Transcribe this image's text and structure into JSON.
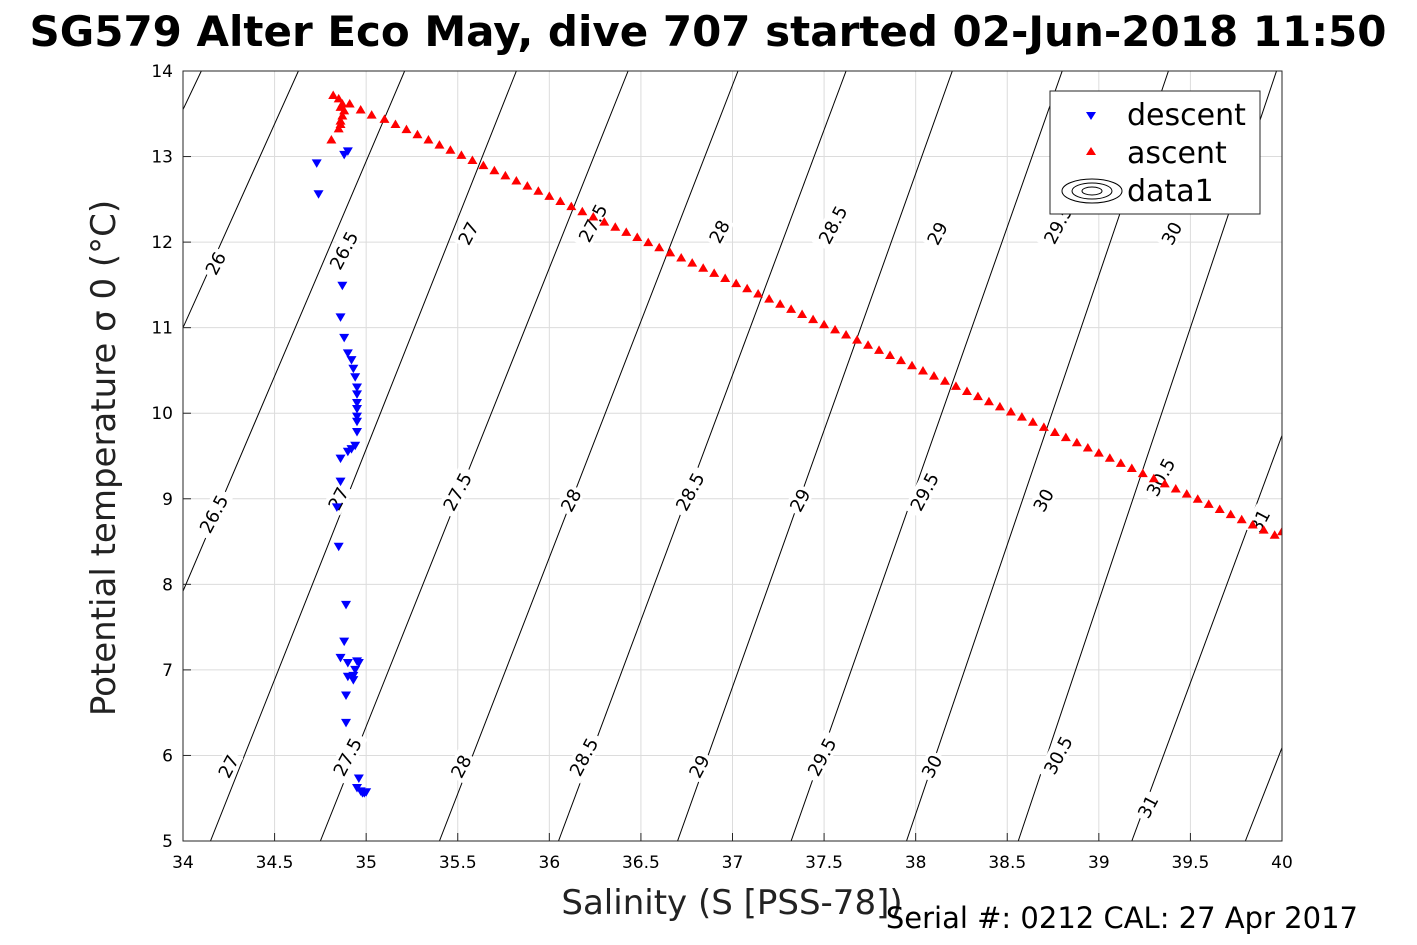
{
  "title": "SG579 Alter Eco May, dive 707 started 02-Jun-2018 11:50",
  "footer": "Serial #: 0212  CAL: 27 Apr 2017",
  "colors": {
    "descent": "#0000ff",
    "ascent": "#ff0000",
    "contour": "#000000",
    "grid": "#dcdcdc"
  },
  "chart_data": {
    "type": "scatter",
    "title": "SG579 Alter Eco May, dive 707 started 02-Jun-2018 11:50",
    "xlabel": "Salinity (S [PSS-78])",
    "ylabel": "Potential temperature σ 0 (°C)",
    "xlim": [
      34,
      40
    ],
    "ylim": [
      5,
      14
    ],
    "xticks": [
      "34",
      "34.5",
      "35",
      "35.5",
      "36",
      "36.5",
      "37",
      "37.5",
      "38",
      "38.5",
      "39",
      "39.5",
      "40"
    ],
    "yticks": [
      "5",
      "6",
      "7",
      "8",
      "9",
      "10",
      "11",
      "12",
      "13",
      "14"
    ],
    "grid": true,
    "legend_position": "top-right",
    "legend": [
      "descent",
      "ascent",
      "data1"
    ],
    "series": [
      {
        "name": "descent",
        "marker": "triangle-down",
        "color": "#0000ff",
        "points": [
          [
            34.73,
            12.92
          ],
          [
            34.74,
            12.56
          ],
          [
            34.88,
            13.02
          ],
          [
            34.9,
            13.06
          ],
          [
            34.87,
            11.49
          ],
          [
            34.86,
            11.12
          ],
          [
            34.88,
            10.88
          ],
          [
            34.9,
            10.7
          ],
          [
            34.92,
            10.62
          ],
          [
            34.93,
            10.52
          ],
          [
            34.94,
            10.42
          ],
          [
            34.95,
            10.3
          ],
          [
            34.95,
            10.22
          ],
          [
            34.95,
            10.12
          ],
          [
            34.95,
            10.05
          ],
          [
            34.95,
            9.96
          ],
          [
            34.95,
            9.9
          ],
          [
            34.95,
            9.78
          ],
          [
            34.94,
            9.62
          ],
          [
            34.92,
            9.58
          ],
          [
            34.9,
            9.55
          ],
          [
            34.86,
            9.47
          ],
          [
            34.86,
            9.2
          ],
          [
            34.84,
            8.9
          ],
          [
            34.85,
            8.44
          ],
          [
            34.89,
            7.76
          ],
          [
            34.88,
            7.33
          ],
          [
            34.86,
            7.14
          ],
          [
            34.9,
            7.08
          ],
          [
            34.95,
            7.1
          ],
          [
            34.96,
            7.08
          ],
          [
            34.94,
            7.0
          ],
          [
            34.93,
            6.93
          ],
          [
            34.9,
            6.92
          ],
          [
            34.93,
            6.88
          ],
          [
            34.89,
            6.7
          ],
          [
            34.89,
            6.38
          ],
          [
            34.96,
            5.73
          ],
          [
            34.95,
            5.62
          ],
          [
            34.97,
            5.58
          ],
          [
            34.98,
            5.56
          ],
          [
            34.99,
            5.56
          ],
          [
            35.0,
            5.57
          ]
        ]
      },
      {
        "name": "ascent",
        "marker": "triangle-up",
        "color": "#ff0000",
        "points": [
          [
            34.82,
            13.72
          ],
          [
            34.85,
            13.68
          ],
          [
            34.87,
            13.62
          ],
          [
            34.86,
            13.58
          ],
          [
            34.88,
            13.54
          ],
          [
            34.87,
            13.48
          ],
          [
            34.86,
            13.42
          ],
          [
            34.86,
            13.38
          ],
          [
            34.85,
            13.33
          ],
          [
            34.81,
            13.2
          ],
          [
            34.91,
            13.62
          ],
          [
            34.97,
            13.55
          ],
          [
            35.03,
            13.49
          ],
          [
            35.1,
            13.44
          ],
          [
            35.16,
            13.38
          ],
          [
            35.22,
            13.32
          ],
          [
            35.28,
            13.26
          ],
          [
            35.34,
            13.2
          ],
          [
            35.4,
            13.14
          ],
          [
            35.46,
            13.08
          ],
          [
            35.52,
            13.02
          ],
          [
            35.58,
            12.96
          ],
          [
            35.64,
            12.9
          ],
          [
            35.7,
            12.84
          ],
          [
            35.76,
            12.78
          ],
          [
            35.82,
            12.72
          ],
          [
            35.88,
            12.66
          ],
          [
            35.94,
            12.6
          ],
          [
            36.0,
            12.54
          ],
          [
            36.06,
            12.48
          ],
          [
            36.12,
            12.42
          ],
          [
            36.18,
            12.36
          ],
          [
            36.24,
            12.3
          ],
          [
            36.3,
            12.24
          ],
          [
            36.36,
            12.18
          ],
          [
            36.42,
            12.12
          ],
          [
            36.48,
            12.06
          ],
          [
            36.54,
            12.0
          ],
          [
            36.6,
            11.94
          ],
          [
            36.66,
            11.88
          ],
          [
            36.72,
            11.82
          ],
          [
            36.78,
            11.76
          ],
          [
            36.84,
            11.7
          ],
          [
            36.9,
            11.64
          ],
          [
            36.96,
            11.58
          ],
          [
            37.02,
            11.52
          ],
          [
            37.08,
            11.46
          ],
          [
            37.14,
            11.4
          ],
          [
            37.2,
            11.34
          ],
          [
            37.26,
            11.28
          ],
          [
            37.32,
            11.22
          ],
          [
            37.38,
            11.16
          ],
          [
            37.44,
            11.1
          ],
          [
            37.5,
            11.04
          ],
          [
            37.56,
            10.98
          ],
          [
            37.62,
            10.92
          ],
          [
            37.68,
            10.86
          ],
          [
            37.74,
            10.8
          ],
          [
            37.8,
            10.74
          ],
          [
            37.86,
            10.68
          ],
          [
            37.92,
            10.62
          ],
          [
            37.98,
            10.56
          ],
          [
            38.04,
            10.5
          ],
          [
            38.1,
            10.44
          ],
          [
            38.16,
            10.38
          ],
          [
            38.22,
            10.32
          ],
          [
            38.28,
            10.26
          ],
          [
            38.34,
            10.2
          ],
          [
            38.4,
            10.14
          ],
          [
            38.46,
            10.08
          ],
          [
            38.52,
            10.02
          ],
          [
            38.58,
            9.96
          ],
          [
            38.64,
            9.9
          ],
          [
            38.7,
            9.84
          ],
          [
            38.76,
            9.78
          ],
          [
            38.82,
            9.72
          ],
          [
            38.88,
            9.66
          ],
          [
            38.94,
            9.6
          ],
          [
            39.0,
            9.54
          ],
          [
            39.06,
            9.48
          ],
          [
            39.12,
            9.42
          ],
          [
            39.18,
            9.36
          ],
          [
            39.24,
            9.3
          ],
          [
            39.3,
            9.24
          ],
          [
            39.36,
            9.18
          ],
          [
            39.42,
            9.12
          ],
          [
            39.48,
            9.06
          ],
          [
            39.54,
            9.0
          ],
          [
            39.6,
            8.94
          ],
          [
            39.66,
            8.88
          ],
          [
            39.72,
            8.82
          ],
          [
            39.78,
            8.76
          ],
          [
            39.84,
            8.7
          ],
          [
            39.9,
            8.64
          ],
          [
            39.96,
            8.58
          ],
          [
            40.0,
            8.62
          ]
        ]
      }
    ],
    "contours": {
      "name": "data1",
      "levels": [
        "26",
        "26.5",
        "27",
        "27.5",
        "28",
        "28.5",
        "29",
        "29.5",
        "30",
        "30.5",
        "31"
      ],
      "lines": [
        {
          "level": 26,
          "from": [
            34.0,
            13.55
          ],
          "to": [
            34.1,
            14.0
          ]
        },
        {
          "level": 26.5,
          "from": [
            34.0,
            11.0
          ],
          "to": [
            34.63,
            14.0
          ]
        },
        {
          "level": 27,
          "from": [
            34.0,
            7.92
          ],
          "to": [
            35.21,
            14.0
          ]
        },
        {
          "level": 27.5,
          "from": [
            34.15,
            5.0
          ],
          "to": [
            35.82,
            14.0
          ]
        },
        {
          "level": 28,
          "from": [
            34.75,
            5.0
          ],
          "to": [
            36.43,
            14.0
          ]
        },
        {
          "level": 28.5,
          "from": [
            35.4,
            5.0
          ],
          "to": [
            37.03,
            14.0
          ]
        },
        {
          "level": 29,
          "from": [
            36.05,
            5.0
          ],
          "to": [
            37.62,
            14.0
          ]
        },
        {
          "level": 29.5,
          "from": [
            36.7,
            5.0
          ],
          "to": [
            38.2,
            14.0
          ]
        },
        {
          "level": 30,
          "from": [
            37.32,
            5.0
          ],
          "to": [
            38.8,
            14.0
          ]
        },
        {
          "level": 30.5,
          "from": [
            37.95,
            5.0
          ],
          "to": [
            39.38,
            14.0
          ]
        },
        {
          "level": 31,
          "from": [
            38.56,
            5.0
          ],
          "to": [
            39.97,
            14.0
          ]
        },
        {
          "level": 31.5,
          "from": [
            39.18,
            5.0
          ],
          "to": [
            40.0,
            9.74
          ]
        },
        {
          "level": 32,
          "from": [
            39.8,
            5.0
          ],
          "to": [
            40.0,
            6.09
          ]
        }
      ],
      "labels": [
        {
          "text": "26",
          "x": 34.18,
          "y": 11.75
        },
        {
          "text": "26.5",
          "x": 34.88,
          "y": 11.9
        },
        {
          "text": "27",
          "x": 35.56,
          "y": 12.1
        },
        {
          "text": "27.5",
          "x": 36.24,
          "y": 12.22
        },
        {
          "text": "28",
          "x": 36.93,
          "y": 12.12
        },
        {
          "text": "28.5",
          "x": 37.55,
          "y": 12.2
        },
        {
          "text": "29",
          "x": 38.12,
          "y": 12.1
        },
        {
          "text": "29.5",
          "x": 38.78,
          "y": 12.2
        },
        {
          "text": "30",
          "x": 39.4,
          "y": 12.1
        },
        {
          "text": "26.5",
          "x": 34.17,
          "y": 8.82
        },
        {
          "text": "27",
          "x": 34.85,
          "y": 9.0
        },
        {
          "text": "27.5",
          "x": 35.5,
          "y": 9.08
        },
        {
          "text": "28",
          "x": 36.12,
          "y": 8.98
        },
        {
          "text": "28.5",
          "x": 36.77,
          "y": 9.08
        },
        {
          "text": "29",
          "x": 37.37,
          "y": 8.98
        },
        {
          "text": "29.5",
          "x": 38.05,
          "y": 9.08
        },
        {
          "text": "30",
          "x": 38.7,
          "y": 8.98
        },
        {
          "text": "30.5",
          "x": 39.34,
          "y": 9.25
        },
        {
          "text": "31",
          "x": 39.88,
          "y": 8.74
        },
        {
          "text": "27",
          "x": 34.25,
          "y": 5.87
        },
        {
          "text": "27.5",
          "x": 34.9,
          "y": 5.98
        },
        {
          "text": "28",
          "x": 35.52,
          "y": 5.87
        },
        {
          "text": "28.5",
          "x": 36.19,
          "y": 5.98
        },
        {
          "text": "29",
          "x": 36.82,
          "y": 5.87
        },
        {
          "text": "29.5",
          "x": 37.49,
          "y": 5.98
        },
        {
          "text": "30",
          "x": 38.09,
          "y": 5.87
        },
        {
          "text": "30.5",
          "x": 38.78,
          "y": 6.0
        },
        {
          "text": "31",
          "x": 39.27,
          "y": 5.4
        }
      ]
    }
  }
}
